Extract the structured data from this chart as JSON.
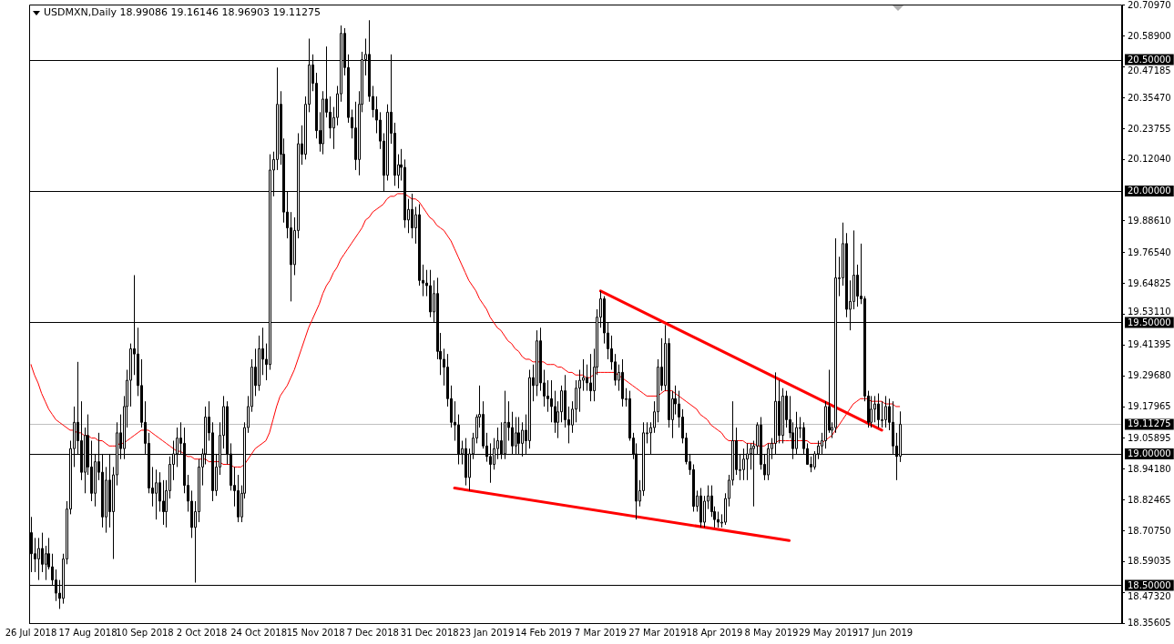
{
  "chart_data": {
    "type": "candlestick",
    "title": "USDMXN,Daily 18.99086 19.16146 18.96903 19.11275",
    "categories": [
      "26 Jul 2018",
      null,
      null,
      null,
      null,
      null,
      null,
      null,
      null,
      null,
      null,
      null,
      null,
      null,
      null,
      null,
      "17 Aug 2018",
      null,
      null,
      null,
      null,
      null,
      null,
      null,
      null,
      null,
      null,
      null,
      null,
      null,
      null,
      null,
      "10 Sep 2018",
      null,
      null,
      null,
      null,
      null,
      null,
      null,
      null,
      null,
      null,
      null,
      null,
      null,
      null,
      null,
      "2 Oct 2018",
      null,
      null,
      null,
      null,
      null,
      null,
      null,
      null,
      null,
      null,
      null,
      null,
      null,
      null,
      null,
      "24 Oct 2018",
      null,
      null,
      null,
      null,
      null,
      null,
      null,
      null,
      null,
      null,
      null,
      null,
      null,
      null,
      null,
      "15 Nov 2018",
      null,
      null,
      null,
      null,
      null,
      null,
      null,
      null,
      null,
      null,
      null,
      null,
      null,
      null,
      null,
      "7 Dec 2018",
      null,
      null,
      null,
      null,
      null,
      null,
      null,
      null,
      null,
      null,
      null,
      null,
      null,
      null,
      null,
      "31 Dec 2018",
      null,
      null,
      null,
      null,
      null,
      null,
      null,
      null,
      null,
      null,
      null,
      null,
      null,
      null,
      null,
      "23 Jan 2019",
      null,
      null,
      null,
      null,
      null,
      null,
      null,
      null,
      null,
      null,
      null,
      null,
      null,
      null,
      null,
      "14 Feb 2019",
      null,
      null,
      null,
      null,
      null,
      null,
      null,
      null,
      null,
      null,
      null,
      null,
      null,
      null,
      null,
      "7 Mar 2019",
      null,
      null,
      null,
      null,
      null,
      null,
      null,
      null,
      null,
      null,
      null,
      null,
      null,
      null,
      null,
      "27 Mar 2019",
      null,
      null,
      null,
      null,
      null,
      null,
      null,
      null,
      null,
      null,
      null,
      null,
      null,
      null,
      null,
      "18 Apr 2019",
      null,
      null,
      null,
      null,
      null,
      null,
      null,
      null,
      null,
      null,
      null,
      null,
      null,
      null,
      null,
      "8 May 2019",
      null,
      null,
      null,
      null,
      null,
      null,
      null,
      null,
      null,
      null,
      null,
      null,
      null,
      null,
      null,
      "29 May 2019",
      null,
      null,
      null,
      null,
      null,
      null,
      null,
      null,
      null,
      null,
      null,
      null,
      null,
      null,
      null,
      "17 Jun 2019",
      null,
      null,
      null,
      null
    ],
    "ohlc": [
      [
        18.7,
        18.76,
        18.55,
        18.62
      ],
      [
        18.62,
        18.68,
        18.55,
        18.6
      ],
      [
        18.6,
        18.68,
        18.52,
        18.64
      ],
      [
        18.64,
        18.7,
        18.55,
        18.58
      ],
      [
        18.58,
        18.65,
        18.52,
        18.62
      ],
      [
        18.62,
        18.68,
        18.56,
        18.57
      ],
      [
        18.57,
        18.62,
        18.5,
        18.52
      ],
      [
        18.52,
        18.56,
        18.44,
        18.47
      ],
      [
        18.47,
        18.52,
        18.41,
        18.45
      ],
      [
        18.45,
        18.62,
        18.43,
        18.6
      ],
      [
        18.6,
        18.82,
        18.58,
        18.79
      ],
      [
        18.79,
        19.05,
        18.77,
        19.02
      ],
      [
        19.02,
        19.18,
        18.95,
        19.12
      ],
      [
        19.12,
        19.35,
        19.0,
        19.05
      ],
      [
        19.05,
        19.2,
        18.9,
        18.93
      ],
      [
        18.93,
        19.1,
        18.85,
        19.07
      ],
      [
        19.07,
        19.15,
        18.92,
        18.95
      ],
      [
        18.95,
        19.05,
        18.82,
        18.85
      ],
      [
        18.85,
        19.0,
        18.8,
        18.97
      ],
      [
        18.97,
        19.08,
        18.9,
        18.93
      ],
      [
        18.93,
        19.0,
        18.72,
        18.76
      ],
      [
        18.76,
        18.95,
        18.7,
        18.9
      ],
      [
        18.9,
        19.0,
        18.72,
        18.78
      ],
      [
        18.78,
        18.95,
        18.6,
        18.92
      ],
      [
        18.92,
        19.12,
        18.88,
        19.08
      ],
      [
        19.08,
        19.15,
        18.98,
        19.02
      ],
      [
        19.02,
        19.22,
        18.98,
        19.18
      ],
      [
        19.18,
        19.32,
        19.1,
        19.28
      ],
      [
        19.28,
        19.42,
        19.18,
        19.4
      ],
      [
        19.4,
        19.68,
        19.3,
        19.38
      ],
      [
        19.38,
        19.48,
        19.22,
        19.26
      ],
      [
        19.26,
        19.36,
        19.1,
        19.12
      ],
      [
        19.12,
        19.2,
        19.0,
        19.04
      ],
      [
        19.04,
        19.08,
        18.85,
        18.87
      ],
      [
        18.87,
        18.95,
        18.8,
        18.85
      ],
      [
        18.85,
        18.94,
        18.75,
        18.89
      ],
      [
        18.89,
        18.93,
        18.78,
        18.82
      ],
      [
        18.82,
        18.9,
        18.73,
        18.78
      ],
      [
        18.78,
        18.9,
        18.72,
        18.86
      ],
      [
        18.86,
        18.99,
        18.83,
        18.96
      ],
      [
        18.96,
        19.05,
        18.9,
        19.0
      ],
      [
        19.0,
        19.1,
        18.95,
        19.06
      ],
      [
        19.06,
        19.12,
        19.0,
        19.04
      ],
      [
        19.04,
        19.1,
        18.85,
        18.88
      ],
      [
        18.88,
        18.92,
        18.78,
        18.82
      ],
      [
        18.82,
        18.86,
        18.68,
        18.72
      ],
      [
        18.72,
        18.82,
        18.51,
        18.78
      ],
      [
        18.78,
        18.98,
        18.74,
        18.95
      ],
      [
        18.95,
        19.02,
        18.88,
        19.0
      ],
      [
        19.0,
        19.18,
        18.96,
        19.14
      ],
      [
        19.14,
        19.2,
        19.05,
        19.08
      ],
      [
        19.08,
        19.12,
        18.82,
        18.86
      ],
      [
        18.86,
        19.0,
        18.84,
        18.95
      ],
      [
        18.95,
        19.12,
        18.92,
        19.07
      ],
      [
        19.07,
        19.22,
        19.02,
        19.18
      ],
      [
        19.18,
        19.2,
        18.96,
        19.0
      ],
      [
        19.0,
        19.04,
        18.86,
        18.88
      ],
      [
        18.88,
        18.95,
        18.8,
        18.86
      ],
      [
        18.86,
        18.92,
        18.74,
        18.76
      ],
      [
        18.76,
        18.88,
        18.74,
        18.85
      ],
      [
        18.85,
        19.12,
        18.83,
        19.1
      ],
      [
        19.1,
        19.22,
        19.08,
        19.18
      ],
      [
        19.18,
        19.36,
        19.16,
        19.33
      ],
      [
        19.33,
        19.4,
        19.22,
        19.26
      ],
      [
        19.26,
        19.45,
        19.24,
        19.4
      ],
      [
        19.4,
        19.48,
        19.3,
        19.36
      ],
      [
        19.36,
        19.42,
        19.28,
        19.34
      ],
      [
        19.34,
        20.14,
        19.32,
        20.08
      ],
      [
        20.08,
        20.15,
        19.98,
        20.12
      ],
      [
        20.12,
        20.47,
        20.08,
        20.33
      ],
      [
        20.33,
        20.38,
        20.1,
        20.14
      ],
      [
        20.14,
        20.2,
        19.88,
        19.92
      ],
      [
        19.92,
        20.0,
        19.82,
        19.86
      ],
      [
        19.86,
        19.92,
        19.58,
        19.72
      ],
      [
        19.72,
        19.9,
        19.68,
        19.85
      ],
      [
        19.85,
        20.22,
        19.82,
        20.18
      ],
      [
        20.18,
        20.25,
        20.1,
        20.14
      ],
      [
        20.14,
        20.36,
        20.12,
        20.33
      ],
      [
        20.33,
        20.58,
        20.3,
        20.48
      ],
      [
        20.48,
        20.52,
        20.38,
        20.41
      ],
      [
        20.41,
        20.45,
        20.2,
        20.23
      ],
      [
        20.23,
        20.3,
        20.15,
        20.18
      ],
      [
        20.18,
        20.38,
        20.14,
        20.35
      ],
      [
        20.35,
        20.55,
        20.28,
        20.3
      ],
      [
        20.3,
        20.36,
        20.2,
        20.24
      ],
      [
        20.24,
        20.32,
        20.16,
        20.28
      ],
      [
        20.28,
        20.4,
        20.25,
        20.37
      ],
      [
        20.37,
        20.63,
        20.34,
        20.6
      ],
      [
        20.6,
        20.62,
        20.44,
        20.47
      ],
      [
        20.47,
        20.52,
        20.26,
        20.28
      ],
      [
        20.28,
        20.31,
        20.2,
        20.24
      ],
      [
        20.24,
        20.34,
        20.08,
        20.12
      ],
      [
        20.12,
        20.38,
        20.06,
        20.33
      ],
      [
        20.33,
        20.53,
        20.3,
        20.5
      ],
      [
        20.5,
        20.58,
        20.44,
        20.52
      ],
      [
        20.52,
        20.65,
        20.34,
        20.36
      ],
      [
        20.36,
        20.4,
        20.28,
        20.31
      ],
      [
        20.31,
        20.36,
        20.22,
        20.27
      ],
      [
        20.27,
        20.3,
        20.16,
        20.19
      ],
      [
        20.19,
        20.22,
        20.0,
        20.06
      ],
      [
        20.06,
        20.33,
        20.04,
        20.3
      ],
      [
        20.3,
        20.52,
        20.18,
        20.22
      ],
      [
        20.22,
        20.26,
        20.02,
        20.06
      ],
      [
        20.06,
        20.14,
        20.01,
        20.1
      ],
      [
        20.1,
        20.16,
        20.04,
        20.09
      ],
      [
        20.09,
        20.12,
        19.86,
        19.89
      ],
      [
        19.89,
        19.97,
        19.84,
        19.93
      ],
      [
        19.93,
        19.99,
        19.82,
        19.86
      ],
      [
        19.86,
        19.94,
        19.8,
        19.91
      ],
      [
        19.91,
        19.95,
        19.64,
        19.66
      ],
      [
        19.66,
        19.72,
        19.6,
        19.65
      ],
      [
        19.65,
        19.7,
        19.6,
        19.64
      ],
      [
        19.64,
        19.7,
        19.52,
        19.54
      ],
      [
        19.54,
        19.66,
        19.5,
        19.61
      ],
      [
        19.61,
        19.67,
        19.36,
        19.39
      ],
      [
        19.39,
        19.46,
        19.3,
        19.36
      ],
      [
        19.36,
        19.4,
        19.26,
        19.33
      ],
      [
        19.33,
        19.38,
        19.18,
        19.21
      ],
      [
        19.21,
        19.26,
        19.1,
        19.12
      ],
      [
        19.12,
        19.2,
        19.05,
        19.11
      ],
      [
        19.11,
        19.15,
        18.96,
        19.0
      ],
      [
        19.0,
        19.05,
        18.96,
        19.02
      ],
      [
        19.02,
        19.06,
        18.88,
        18.91
      ],
      [
        18.91,
        19.02,
        18.86,
        19.0
      ],
      [
        19.0,
        19.08,
        18.98,
        19.06
      ],
      [
        19.06,
        19.15,
        19.04,
        19.14
      ],
      [
        19.14,
        19.26,
        19.1,
        19.15
      ],
      [
        19.15,
        19.2,
        19.02,
        19.03
      ],
      [
        19.03,
        19.08,
        18.97,
        18.99
      ],
      [
        18.99,
        19.04,
        18.89,
        18.96
      ],
      [
        18.96,
        19.06,
        18.94,
        19.02
      ],
      [
        19.02,
        19.1,
        18.98,
        19.05
      ],
      [
        19.05,
        19.12,
        18.98,
        19.0
      ],
      [
        19.0,
        19.24,
        18.98,
        19.12
      ],
      [
        19.12,
        19.2,
        19.05,
        19.1
      ],
      [
        19.1,
        19.16,
        19.0,
        19.03
      ],
      [
        19.03,
        19.14,
        19.0,
        19.08
      ],
      [
        19.08,
        19.14,
        19.0,
        19.04
      ],
      [
        19.04,
        19.12,
        18.99,
        19.09
      ],
      [
        19.09,
        19.15,
        19.0,
        19.05
      ],
      [
        19.05,
        19.32,
        19.02,
        19.29
      ],
      [
        19.29,
        19.34,
        19.2,
        19.26
      ],
      [
        19.26,
        19.47,
        19.22,
        19.43
      ],
      [
        19.43,
        19.48,
        19.24,
        19.27
      ],
      [
        19.27,
        19.32,
        19.18,
        19.22
      ],
      [
        19.22,
        19.28,
        19.16,
        19.21
      ],
      [
        19.21,
        19.28,
        19.12,
        19.18
      ],
      [
        19.18,
        19.24,
        19.08,
        19.12
      ],
      [
        19.12,
        19.2,
        19.06,
        19.16
      ],
      [
        19.16,
        19.26,
        19.12,
        19.24
      ],
      [
        19.24,
        19.3,
        19.1,
        19.13
      ],
      [
        19.13,
        19.18,
        19.04,
        19.11
      ],
      [
        19.11,
        19.2,
        19.08,
        19.17
      ],
      [
        19.17,
        19.28,
        19.12,
        19.25
      ],
      [
        19.25,
        19.32,
        19.16,
        19.28
      ],
      [
        19.28,
        19.36,
        19.24,
        19.29
      ],
      [
        19.29,
        19.34,
        19.24,
        19.27
      ],
      [
        19.27,
        19.38,
        19.2,
        19.24
      ],
      [
        19.24,
        19.4,
        19.2,
        19.33
      ],
      [
        19.33,
        19.55,
        19.3,
        19.52
      ],
      [
        19.52,
        19.62,
        19.48,
        19.59
      ],
      [
        19.59,
        19.6,
        19.42,
        19.46
      ],
      [
        19.46,
        19.5,
        19.36,
        19.4
      ],
      [
        19.4,
        19.45,
        19.32,
        19.35
      ],
      [
        19.35,
        19.38,
        19.26,
        19.28
      ],
      [
        19.28,
        19.34,
        19.24,
        19.31
      ],
      [
        19.31,
        19.36,
        19.18,
        19.21
      ],
      [
        19.21,
        19.25,
        19.18,
        19.21
      ],
      [
        19.21,
        19.24,
        19.05,
        19.06
      ],
      [
        19.06,
        19.08,
        18.98,
        19.0
      ],
      [
        19.0,
        19.04,
        18.75,
        18.82
      ],
      [
        18.82,
        18.9,
        18.8,
        18.86
      ],
      [
        18.86,
        19.12,
        18.84,
        19.08
      ],
      [
        19.08,
        19.12,
        19.04,
        19.08
      ],
      [
        19.08,
        19.12,
        19.0,
        19.1
      ],
      [
        19.1,
        19.2,
        19.08,
        19.16
      ],
      [
        19.16,
        19.36,
        19.12,
        19.33
      ],
      [
        19.33,
        19.44,
        19.24,
        19.26
      ],
      [
        19.26,
        19.49,
        19.24,
        19.42
      ],
      [
        19.42,
        19.44,
        19.1,
        19.13
      ],
      [
        19.13,
        19.24,
        19.06,
        19.21
      ],
      [
        19.21,
        19.26,
        19.15,
        19.19
      ],
      [
        19.19,
        19.24,
        19.1,
        19.14
      ],
      [
        19.14,
        19.17,
        19.04,
        19.06
      ],
      [
        19.06,
        19.08,
        18.96,
        18.97
      ],
      [
        18.97,
        19.0,
        18.92,
        18.94
      ],
      [
        18.94,
        18.96,
        18.78,
        18.8
      ],
      [
        18.8,
        18.86,
        18.78,
        18.84
      ],
      [
        18.84,
        18.87,
        18.72,
        18.74
      ],
      [
        18.74,
        18.84,
        18.72,
        18.82
      ],
      [
        18.82,
        18.88,
        18.79,
        18.84
      ],
      [
        18.84,
        18.88,
        18.76,
        18.78
      ],
      [
        18.78,
        18.8,
        18.72,
        18.75
      ],
      [
        18.75,
        18.78,
        18.72,
        18.74
      ],
      [
        18.74,
        18.77,
        18.72,
        18.74
      ],
      [
        18.74,
        18.85,
        18.73,
        18.83
      ],
      [
        18.83,
        18.92,
        18.8,
        18.9
      ],
      [
        18.9,
        19.2,
        18.88,
        19.05
      ],
      [
        19.05,
        19.1,
        18.92,
        18.94
      ],
      [
        18.94,
        19.0,
        18.9,
        18.94
      ],
      [
        18.94,
        19.02,
        18.9,
        18.98
      ],
      [
        18.98,
        19.04,
        18.9,
        19.0
      ],
      [
        19.0,
        19.04,
        18.94,
        19.02
      ],
      [
        19.02,
        19.05,
        18.8,
        19.03
      ],
      [
        19.03,
        19.12,
        19.0,
        19.11
      ],
      [
        19.11,
        19.14,
        18.94,
        18.96
      ],
      [
        18.96,
        19.0,
        18.9,
        18.92
      ],
      [
        18.92,
        19.04,
        18.9,
        19.02
      ],
      [
        19.02,
        19.06,
        18.98,
        19.04
      ],
      [
        19.04,
        19.31,
        19.0,
        19.2
      ],
      [
        19.2,
        19.28,
        19.04,
        19.07
      ],
      [
        19.07,
        19.25,
        19.04,
        19.22
      ],
      [
        19.22,
        19.24,
        19.1,
        19.13
      ],
      [
        19.13,
        19.22,
        19.06,
        19.08
      ],
      [
        19.08,
        19.12,
        18.98,
        19.02
      ],
      [
        19.02,
        19.16,
        19.0,
        19.1
      ],
      [
        19.1,
        19.14,
        19.06,
        19.1
      ],
      [
        19.1,
        19.12,
        19.0,
        19.02
      ],
      [
        19.02,
        19.04,
        18.96,
        18.96
      ],
      [
        18.96,
        18.99,
        18.93,
        18.95
      ],
      [
        18.95,
        19.01,
        18.94,
        19.0
      ],
      [
        19.0,
        19.05,
        18.98,
        19.03
      ],
      [
        19.03,
        19.08,
        19.0,
        19.05
      ],
      [
        19.05,
        19.2,
        19.02,
        19.18
      ],
      [
        19.18,
        19.32,
        19.08,
        19.09
      ],
      [
        19.09,
        19.12,
        19.06,
        19.1
      ],
      [
        19.1,
        19.82,
        19.08,
        19.67
      ],
      [
        19.67,
        19.75,
        19.6,
        19.67
      ],
      [
        19.67,
        19.88,
        19.64,
        19.8
      ],
      [
        19.8,
        19.84,
        19.52,
        19.55
      ],
      [
        19.55,
        19.66,
        19.47,
        19.58
      ],
      [
        19.58,
        19.85,
        19.55,
        19.68
      ],
      [
        19.68,
        19.72,
        19.56,
        19.6
      ],
      [
        19.6,
        19.8,
        19.57,
        19.59
      ],
      [
        19.59,
        19.6,
        19.2,
        19.22
      ],
      [
        19.22,
        19.24,
        19.1,
        19.12
      ],
      [
        19.12,
        19.22,
        19.1,
        19.17
      ],
      [
        19.17,
        19.22,
        19.12,
        19.19
      ],
      [
        19.19,
        19.23,
        19.1,
        19.13
      ],
      [
        19.13,
        19.2,
        19.1,
        19.13
      ],
      [
        19.13,
        19.22,
        19.1,
        19.18
      ],
      [
        19.18,
        19.21,
        19.09,
        19.12
      ],
      [
        19.12,
        19.2,
        19.0,
        19.03
      ],
      [
        19.03,
        19.08,
        18.9,
        18.99
      ],
      [
        18.99086,
        19.16146,
        18.96903,
        19.11275
      ]
    ],
    "series": [
      {
        "type": "line",
        "color": "#ff0000",
        "values": [
          19.34,
          19.3,
          19.27,
          19.23,
          19.2,
          19.17,
          19.15,
          19.13,
          19.12,
          19.11,
          19.1,
          19.09,
          19.09,
          19.08,
          19.08,
          19.07,
          19.07,
          19.06,
          19.06,
          19.05,
          19.05,
          19.04,
          19.03,
          19.03,
          19.03,
          19.04,
          19.04,
          19.05,
          19.06,
          19.07,
          19.08,
          19.09,
          19.09,
          19.09,
          19.08,
          19.07,
          19.06,
          19.05,
          19.04,
          19.03,
          19.02,
          19.01,
          19.01,
          19.0,
          18.99,
          18.99,
          18.98,
          18.98,
          18.98,
          18.98,
          18.97,
          18.97,
          18.97,
          18.97,
          18.96,
          18.96,
          18.96,
          18.95,
          18.95,
          18.95,
          18.96,
          18.98,
          19.0,
          19.02,
          19.03,
          19.04,
          19.05,
          19.08,
          19.13,
          19.18,
          19.22,
          19.24,
          19.26,
          19.29,
          19.32,
          19.36,
          19.4,
          19.44,
          19.48,
          19.51,
          19.54,
          19.57,
          19.61,
          19.64,
          19.66,
          19.69,
          19.71,
          19.74,
          19.76,
          19.78,
          19.8,
          19.82,
          19.84,
          19.86,
          19.89,
          19.9,
          19.92,
          19.93,
          19.94,
          19.95,
          19.97,
          19.98,
          19.98,
          19.99,
          19.99,
          19.99,
          19.98,
          19.97,
          19.97,
          19.96,
          19.94,
          19.92,
          19.9,
          19.89,
          19.87,
          19.86,
          19.85,
          19.83,
          19.81,
          19.78,
          19.75,
          19.72,
          19.69,
          19.66,
          19.64,
          19.62,
          19.59,
          19.57,
          19.55,
          19.52,
          19.5,
          19.48,
          19.47,
          19.45,
          19.43,
          19.42,
          19.4,
          19.39,
          19.37,
          19.36,
          19.36,
          19.35,
          19.35,
          19.35,
          19.35,
          19.34,
          19.34,
          19.34,
          19.33,
          19.33,
          19.32,
          19.31,
          19.31,
          19.3,
          19.3,
          19.3,
          19.29,
          19.29,
          19.3,
          19.31,
          19.31,
          19.31,
          19.31,
          19.31,
          19.31,
          19.3,
          19.29,
          19.28,
          19.27,
          19.26,
          19.25,
          19.24,
          19.23,
          19.22,
          19.22,
          19.22,
          19.22,
          19.23,
          19.24,
          19.24,
          19.24,
          19.23,
          19.22,
          19.21,
          19.2,
          19.19,
          19.18,
          19.17,
          19.15,
          19.14,
          19.13,
          19.11,
          19.1,
          19.09,
          19.08,
          19.06,
          19.05,
          19.05,
          19.05,
          19.05,
          19.05,
          19.04,
          19.04,
          19.04,
          19.03,
          19.03,
          19.03,
          19.04,
          19.04,
          19.04,
          19.05,
          19.05,
          19.05,
          19.05,
          19.05,
          19.05,
          19.05,
          19.05,
          19.05,
          19.04,
          19.04,
          19.04,
          19.04,
          19.05,
          19.06,
          19.07,
          19.09,
          19.11,
          19.13,
          19.15,
          19.17,
          19.19,
          19.2,
          19.21,
          19.21,
          19.21,
          19.2,
          19.2,
          19.2,
          19.2,
          19.19,
          19.19,
          19.19,
          19.18,
          19.18
        ]
      },
      {
        "type": "line",
        "color": "#ff0000",
        "values": [
          null,
          null,
          null,
          null,
          null,
          null,
          null,
          null,
          null,
          null,
          null,
          null,
          null,
          null,
          null,
          null,
          null,
          null,
          null,
          null,
          null,
          null,
          null,
          null,
          null,
          null,
          null,
          null,
          null,
          null,
          null,
          null,
          null,
          null,
          null,
          null,
          null,
          null,
          null,
          null,
          null,
          null,
          null,
          null,
          null,
          null,
          null,
          null,
          null,
          null,
          null,
          null,
          null,
          null,
          null,
          null,
          null,
          null,
          null,
          null,
          null,
          null,
          null,
          null,
          null,
          null,
          null,
          null,
          null,
          null,
          null,
          null,
          null,
          null,
          null,
          null,
          null,
          null,
          null,
          null,
          null,
          null,
          null,
          null,
          null,
          null,
          null,
          null,
          null,
          null,
          null,
          null,
          null,
          null,
          null,
          null,
          null,
          null,
          null,
          null,
          null,
          null,
          null,
          null,
          null,
          null,
          null,
          null,
          null,
          null,
          null,
          null,
          null,
          null,
          null,
          null,
          null,
          null,
          null,
          18.87,
          null,
          null,
          null,
          null,
          null,
          null,
          null,
          null,
          null,
          null,
          null,
          null,
          null,
          null,
          null,
          null,
          null,
          null,
          null,
          null,
          null,
          null,
          null,
          null,
          null,
          null,
          null,
          null,
          null,
          null,
          null,
          null,
          null,
          null,
          null,
          null,
          null,
          null,
          null,
          null,
          null,
          null,
          null,
          null,
          null,
          null,
          null,
          null,
          null,
          null,
          null,
          null,
          null,
          null,
          null,
          null,
          null,
          null,
          null,
          null,
          null,
          null,
          null,
          null,
          null,
          null,
          null,
          null,
          null,
          null,
          null,
          null,
          null,
          null,
          null,
          null,
          null,
          null,
          null,
          null,
          null,
          null,
          null,
          null,
          null,
          null,
          null,
          null,
          null,
          null,
          null,
          null,
          null,
          18.67,
          null,
          null,
          null,
          null,
          null,
          null,
          null,
          null,
          null,
          null,
          null,
          null,
          null,
          null,
          null,
          null,
          null,
          null,
          null,
          null,
          null,
          null,
          null,
          null,
          null,
          null,
          null,
          null,
          null,
          null,
          null
        ]
      },
      {
        "type": "line",
        "color": "#ff0000",
        "values": [
          null,
          null,
          null,
          null,
          null,
          null,
          null,
          null,
          null,
          null,
          null,
          null,
          null,
          null,
          null,
          null,
          null,
          null,
          null,
          null,
          null,
          null,
          null,
          null,
          null,
          null,
          null,
          null,
          null,
          null,
          null,
          null,
          null,
          null,
          null,
          null,
          null,
          null,
          null,
          null,
          null,
          null,
          null,
          null,
          null,
          null,
          null,
          null,
          null,
          null,
          null,
          null,
          null,
          null,
          null,
          null,
          null,
          null,
          null,
          null,
          null,
          null,
          null,
          null,
          null,
          null,
          null,
          null,
          null,
          null,
          null,
          null,
          null,
          null,
          null,
          null,
          null,
          null,
          null,
          null,
          null,
          null,
          null,
          null,
          null,
          null,
          null,
          null,
          null,
          null,
          null,
          null,
          null,
          null,
          null,
          null,
          null,
          null,
          null,
          null,
          null,
          null,
          null,
          null,
          null,
          null,
          null,
          null,
          null,
          null,
          null,
          null,
          null,
          null,
          null,
          null,
          null,
          null,
          null,
          null,
          null,
          null,
          null,
          null,
          null,
          null,
          null,
          null,
          null,
          null,
          null,
          null,
          null,
          null,
          null,
          null,
          null,
          null,
          null,
          null,
          null,
          null,
          null,
          null,
          null,
          null,
          null,
          null,
          null,
          null,
          null,
          null,
          null,
          null,
          null,
          null,
          null,
          null,
          null,
          null,
          19.62,
          null,
          null,
          null,
          null,
          null,
          null,
          null,
          null,
          null,
          null,
          null,
          null,
          null,
          null,
          null,
          null,
          null,
          null,
          null,
          null,
          null,
          null,
          null,
          null,
          null,
          null,
          null,
          null,
          null,
          null,
          null,
          null,
          null,
          null,
          null,
          null,
          null,
          null,
          null,
          null,
          null,
          null,
          null,
          null,
          null,
          null,
          null,
          null,
          null,
          null,
          null,
          null,
          null,
          null,
          null,
          null,
          null,
          null,
          null,
          null,
          null,
          null,
          null,
          null,
          null,
          null,
          null,
          null,
          null,
          null,
          null,
          null,
          null,
          null,
          null,
          null,
          null,
          null,
          19.09,
          null,
          null,
          null,
          null,
          null
        ]
      }
    ],
    "ylim": [
      18.35605,
      20.7097
    ],
    "yticks": [
      {
        "value": 20.7097,
        "label": "20.70970"
      },
      {
        "value": 20.589,
        "label": "20.58900"
      },
      {
        "value": 20.47185,
        "label": "20.47185"
      },
      {
        "value": 20.3547,
        "label": "20.35470"
      },
      {
        "value": 20.23755,
        "label": "20.23755"
      },
      {
        "value": 20.1204,
        "label": "20.12040"
      },
      {
        "value": 19.8861,
        "label": "19.88610"
      },
      {
        "value": 19.7654,
        "label": "19.76540"
      },
      {
        "value": 19.64825,
        "label": "19.64825"
      },
      {
        "value": 19.5311,
        "label": "19.53110"
      },
      {
        "value": 19.41395,
        "label": "19.41395"
      },
      {
        "value": 19.2968,
        "label": "19.29680"
      },
      {
        "value": 19.17965,
        "label": "19.17965"
      },
      {
        "value": 19.05895,
        "label": "19.05895"
      },
      {
        "value": 18.9418,
        "label": "18.94180"
      },
      {
        "value": 18.82465,
        "label": "18.82465"
      },
      {
        "value": 18.7075,
        "label": "18.70750"
      },
      {
        "value": 18.59035,
        "label": "18.59035"
      },
      {
        "value": 18.4732,
        "label": "18.47320"
      },
      {
        "value": 18.35605,
        "label": "18.35605"
      }
    ],
    "ref_lines": [
      {
        "axis": "y",
        "value": 20.5,
        "label": "20.50000",
        "color": "#000000"
      },
      {
        "axis": "y",
        "value": 20.0,
        "label": "20.00000",
        "color": "#000000"
      },
      {
        "axis": "y",
        "value": 19.5,
        "label": "19.50000",
        "color": "#000000"
      },
      {
        "axis": "y",
        "value": 19.0,
        "label": "19.00000",
        "color": "#000000"
      },
      {
        "axis": "y",
        "value": 18.5,
        "label": "18.50000",
        "color": "#000000"
      },
      {
        "axis": "y",
        "value": 19.11275,
        "label": "19.11275",
        "color": "#c0c0c0"
      }
    ],
    "marker": "none",
    "legend": false
  }
}
